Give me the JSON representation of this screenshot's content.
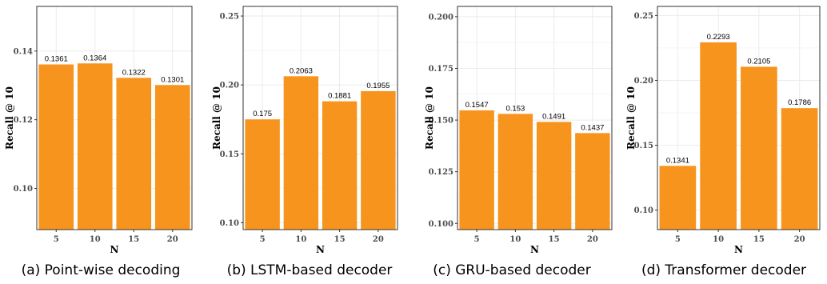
{
  "colors": {
    "bar": "#f7941d",
    "panel_bg": "#ffffff",
    "grid": "#ebebeb",
    "border": "#333333"
  },
  "chart_data": [
    {
      "type": "bar",
      "caption": "(a) Point-wise decoding",
      "xlabel": "N",
      "ylabel": "Recall @ 10",
      "categories": [
        "5",
        "10",
        "15",
        "20"
      ],
      "values": [
        0.1361,
        0.1364,
        0.1322,
        0.1301
      ],
      "value_labels": [
        "0.1361",
        "0.1364",
        "0.1322",
        "0.1301"
      ],
      "ylim": [
        0.088,
        0.153
      ],
      "yticks": [
        0.1,
        0.12,
        0.14
      ],
      "ytick_labels": [
        "0.10",
        "0.12",
        "0.14"
      ],
      "grid": true
    },
    {
      "type": "bar",
      "caption": "(b) LSTM-based decoder",
      "xlabel": "N",
      "ylabel": "Recall @ 10",
      "categories": [
        "5",
        "10",
        "15",
        "20"
      ],
      "values": [
        0.175,
        0.2063,
        0.1881,
        0.1955
      ],
      "value_labels": [
        "0.175",
        "0.2063",
        "0.1881",
        "0.1955"
      ],
      "ylim": [
        0.095,
        0.257
      ],
      "yticks": [
        0.1,
        0.15,
        0.2,
        0.25
      ],
      "ytick_labels": [
        "0.10",
        "0.15",
        "0.20",
        "0.25"
      ],
      "grid": true
    },
    {
      "type": "bar",
      "caption": "(c) GRU-based decoder",
      "xlabel": "N",
      "ylabel": "Recall @ 10",
      "categories": [
        "5",
        "10",
        "15",
        "20"
      ],
      "values": [
        0.1547,
        0.153,
        0.1491,
        0.1437
      ],
      "value_labels": [
        "0.1547",
        "0.153",
        "0.1491",
        "0.1437"
      ],
      "ylim": [
        0.097,
        0.205
      ],
      "yticks": [
        0.1,
        0.125,
        0.15,
        0.175,
        0.2
      ],
      "ytick_labels": [
        "0.100",
        "0.125",
        "0.150",
        "0.175",
        "0.200"
      ],
      "grid": true
    },
    {
      "type": "bar",
      "caption": "(d) Transformer decoder",
      "xlabel": "N",
      "ylabel": "Recall @ 10",
      "categories": [
        "5",
        "10",
        "15",
        "20"
      ],
      "values": [
        0.1341,
        0.2293,
        0.2105,
        0.1786
      ],
      "value_labels": [
        "0.1341",
        "0.2293",
        "0.2105",
        "0.1786"
      ],
      "ylim": [
        0.085,
        0.257
      ],
      "yticks": [
        0.1,
        0.15,
        0.2,
        0.25
      ],
      "ytick_labels": [
        "0.10",
        "0.15",
        "0.20",
        "0.25"
      ],
      "grid": true
    }
  ]
}
